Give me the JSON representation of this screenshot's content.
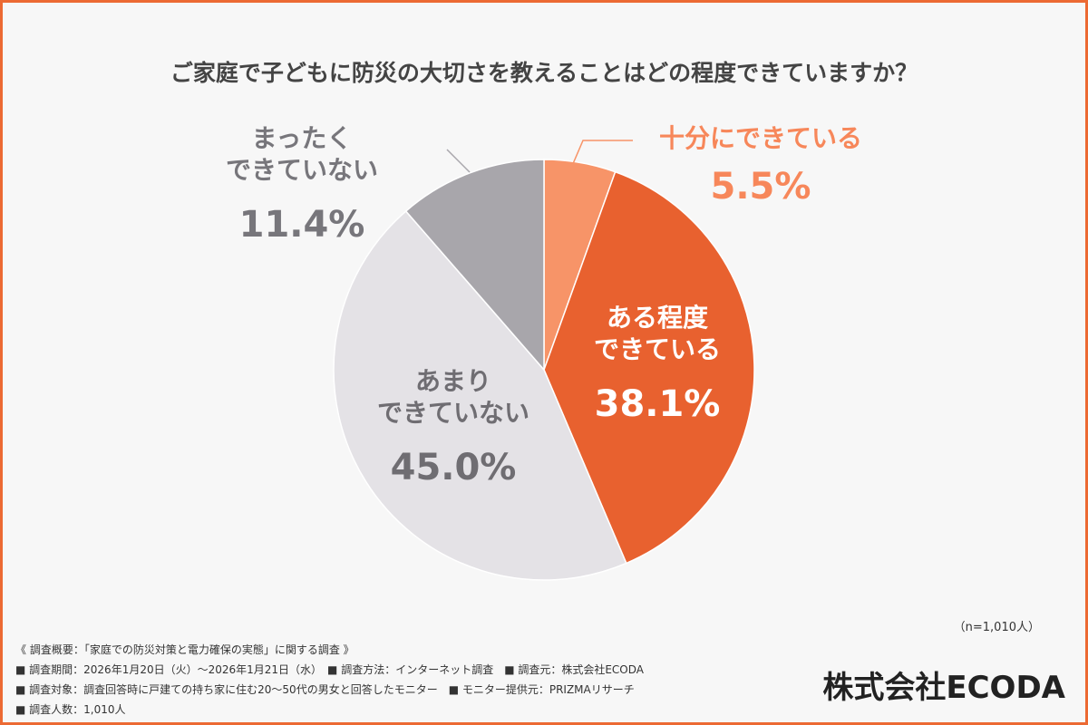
{
  "chart_data": {
    "type": "pie",
    "title": "ご家庭で子どもに防災の大切さを教えることはどの程度できていますか？",
    "categories": [
      "十分にできている",
      "ある程度\nできている",
      "あまり\nできていない",
      "まったく\nできていない"
    ],
    "values": [
      5.5,
      38.1,
      45.0,
      11.4
    ],
    "value_labels": [
      "5.5%",
      "38.1%",
      "45.0%",
      "11.4%"
    ],
    "colors": [
      "#f79468",
      "#e8612f",
      "#e4e2e6",
      "#a8a6ab"
    ],
    "note": "（n=1,010人）",
    "footnotes": [
      "《 調査概要：「家庭での防災対策と電力確保の実態」に関する調査 》",
      "■ 調査期間：2026年1月20日（火）〜2026年1月21日（水）　■ 調査方法：インターネット調査　■ 調査元：株式会社ECODA",
      "■ 調査対象：調査回答時に戸建ての持ち家に住む20〜50代の男女と回答したモニター　■ モニター提供元：PRIZMAリサーチ",
      "■ 調査人数：1,010人"
    ],
    "brand": "株式会社ECODA"
  }
}
